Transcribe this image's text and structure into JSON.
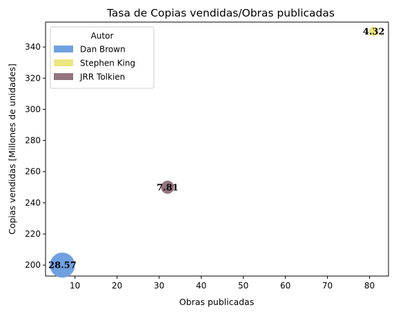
{
  "chart_data": {
    "type": "scatter",
    "title": "Tasa de Copias vendidas/Obras publicadas",
    "xlabel": "Obras publicadas",
    "ylabel": "Copias vendidas [Millones de unidades]",
    "xlim": [
      3,
      84.5
    ],
    "ylim": [
      193,
      356
    ],
    "xticks": [
      10,
      20,
      30,
      40,
      50,
      60,
      70,
      80
    ],
    "yticks": [
      200,
      220,
      240,
      260,
      280,
      300,
      320,
      340
    ],
    "legend": {
      "title": "Autor",
      "placement": "upper-left"
    },
    "series": [
      {
        "name": "Dan Brown",
        "x": 7,
        "y": 200,
        "ratio": 28.57,
        "label": "28.57",
        "color": "#6fa1e1"
      },
      {
        "name": "Stephen King",
        "x": 81,
        "y": 350,
        "ratio": 4.32,
        "label": "4.32",
        "color": "#ece77e"
      },
      {
        "name": "JRR Tolkien",
        "x": 32,
        "y": 250,
        "ratio": 7.81,
        "label": "7.81",
        "color": "#93747f"
      }
    ]
  }
}
